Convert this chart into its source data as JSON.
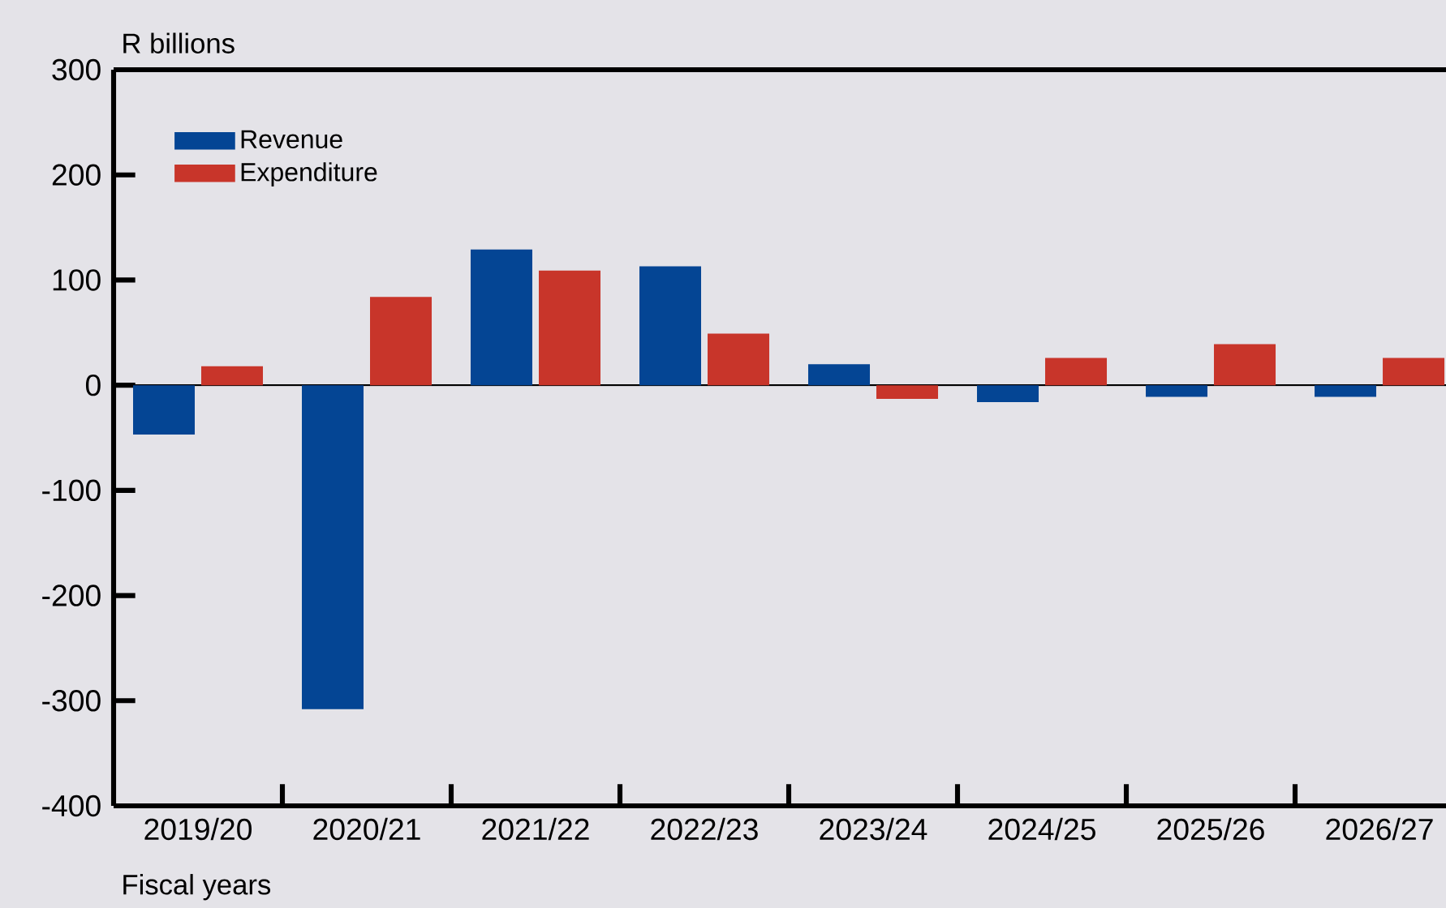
{
  "chart_data": {
    "type": "bar",
    "ylabel": "R billions",
    "xlabel": "Fiscal years",
    "categories": [
      "2019/20",
      "2020/21",
      "2021/22",
      "2022/23",
      "2023/24",
      "2024/25",
      "2025/26",
      "2026/27"
    ],
    "series": [
      {
        "name": "Revenue",
        "color": "#044594",
        "values": [
          -47,
          -308,
          129,
          113,
          20,
          -16,
          -11,
          -11
        ]
      },
      {
        "name": "Expenditure",
        "color": "#c8352a",
        "values": [
          18,
          84,
          109,
          49,
          -13,
          26,
          39,
          26
        ]
      }
    ],
    "ylim": [
      -400,
      300
    ],
    "yticks": [
      -400,
      -300,
      -200,
      -100,
      0,
      100,
      200,
      300
    ],
    "legend": "top left"
  }
}
